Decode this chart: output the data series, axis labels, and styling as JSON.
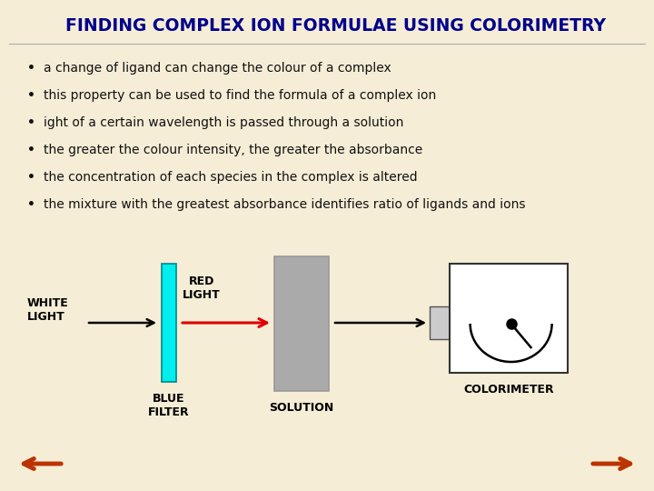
{
  "title": "FINDING COMPLEX ION FORMULAE USING COLORIMETRY",
  "title_color": "#00008B",
  "title_fontsize": 13.5,
  "background_color": "#F5EDD6",
  "bullet_points": [
    "a change of ligand can change the colour of a complex",
    "this property can be used to find the formula of a complex ion",
    "ight of a certain wavelength is passed through a solution",
    "the greater the colour intensity, the greater the absorbance",
    "the concentration of each species in the complex is altered",
    "the mixture with the greatest absorbance identifies ratio of ligands and ions"
  ],
  "bullet_fontsize": 10.0,
  "bullet_color": "#111111",
  "diagram": {
    "white_light_label": "WHITE\nLIGHT",
    "red_light_label": "RED\nLIGHT",
    "blue_filter_label": "BLUE\nFILTER",
    "solution_label": "SOLUTION",
    "colorimeter_label": "COLORIMETER",
    "filter_color": "#00EEEE",
    "solution_color": "#AAAAAA",
    "colorimeter_box_color": "#FFFFFF",
    "connector_color": "#CCCCCC",
    "arrow1_color": "#000000",
    "arrow2_color": "#DD0000",
    "arrow3_color": "#000000",
    "label_fontsize": 9.0
  },
  "nav_arrow_color": "#BB3300"
}
